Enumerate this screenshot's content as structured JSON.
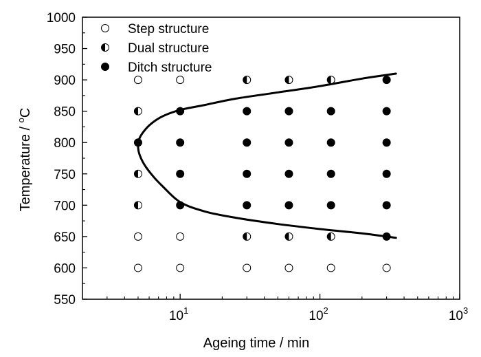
{
  "chart_data": {
    "type": "scatter",
    "x_scale": "log",
    "xlabel": "Ageing time / min",
    "ylabel_text": "Temperature / ",
    "ylabel_unit_sup": "o",
    "ylabel_unit": "C",
    "xlim": [
      2,
      1000
    ],
    "ylim": [
      550,
      1000
    ],
    "x_ticks": [
      {
        "value": 10,
        "base": "10",
        "exp": "1"
      },
      {
        "value": 100,
        "base": "10",
        "exp": "2"
      },
      {
        "value": 1000,
        "base": "10",
        "exp": "3"
      }
    ],
    "y_ticks": [
      550,
      600,
      650,
      700,
      750,
      800,
      850,
      900,
      950,
      1000
    ],
    "y_tick_labels": [
      "550",
      "600",
      "650",
      "700",
      "750",
      "800",
      "850",
      "900",
      "950",
      "1000"
    ],
    "legend": [
      {
        "label": "Step structure",
        "marker": "step"
      },
      {
        "label": "Dual structure",
        "marker": "dual"
      },
      {
        "label": "Ditch structure",
        "marker": "ditch"
      }
    ],
    "legend_position": "top-left",
    "grid": false,
    "points": [
      {
        "x": 5,
        "y": 600,
        "type": "step"
      },
      {
        "x": 10,
        "y": 600,
        "type": "step"
      },
      {
        "x": 30,
        "y": 600,
        "type": "step"
      },
      {
        "x": 60,
        "y": 600,
        "type": "step"
      },
      {
        "x": 120,
        "y": 600,
        "type": "step"
      },
      {
        "x": 300,
        "y": 600,
        "type": "step"
      },
      {
        "x": 5,
        "y": 650,
        "type": "step"
      },
      {
        "x": 10,
        "y": 650,
        "type": "step"
      },
      {
        "x": 30,
        "y": 650,
        "type": "dual"
      },
      {
        "x": 60,
        "y": 650,
        "type": "dual"
      },
      {
        "x": 120,
        "y": 650,
        "type": "dual"
      },
      {
        "x": 300,
        "y": 650,
        "type": "ditch"
      },
      {
        "x": 5,
        "y": 700,
        "type": "dual"
      },
      {
        "x": 10,
        "y": 700,
        "type": "ditch"
      },
      {
        "x": 30,
        "y": 700,
        "type": "ditch"
      },
      {
        "x": 60,
        "y": 700,
        "type": "ditch"
      },
      {
        "x": 120,
        "y": 700,
        "type": "ditch"
      },
      {
        "x": 300,
        "y": 700,
        "type": "ditch"
      },
      {
        "x": 5,
        "y": 750,
        "type": "dual"
      },
      {
        "x": 10,
        "y": 750,
        "type": "ditch"
      },
      {
        "x": 30,
        "y": 750,
        "type": "ditch"
      },
      {
        "x": 60,
        "y": 750,
        "type": "ditch"
      },
      {
        "x": 120,
        "y": 750,
        "type": "ditch"
      },
      {
        "x": 300,
        "y": 750,
        "type": "ditch"
      },
      {
        "x": 5,
        "y": 800,
        "type": "ditch"
      },
      {
        "x": 10,
        "y": 800,
        "type": "ditch"
      },
      {
        "x": 30,
        "y": 800,
        "type": "ditch"
      },
      {
        "x": 60,
        "y": 800,
        "type": "ditch"
      },
      {
        "x": 120,
        "y": 800,
        "type": "ditch"
      },
      {
        "x": 300,
        "y": 800,
        "type": "ditch"
      },
      {
        "x": 5,
        "y": 850,
        "type": "dual"
      },
      {
        "x": 10,
        "y": 850,
        "type": "ditch"
      },
      {
        "x": 30,
        "y": 850,
        "type": "ditch"
      },
      {
        "x": 60,
        "y": 850,
        "type": "ditch"
      },
      {
        "x": 120,
        "y": 850,
        "type": "ditch"
      },
      {
        "x": 300,
        "y": 850,
        "type": "ditch"
      },
      {
        "x": 5,
        "y": 900,
        "type": "step"
      },
      {
        "x": 10,
        "y": 900,
        "type": "step"
      },
      {
        "x": 30,
        "y": 900,
        "type": "dual"
      },
      {
        "x": 60,
        "y": 900,
        "type": "dual"
      },
      {
        "x": 120,
        "y": 900,
        "type": "dual"
      },
      {
        "x": 300,
        "y": 900,
        "type": "ditch"
      }
    ],
    "boundary_curve": [
      {
        "x": 350,
        "y": 910
      },
      {
        "x": 200,
        "y": 902
      },
      {
        "x": 100,
        "y": 890
      },
      {
        "x": 50,
        "y": 880
      },
      {
        "x": 25,
        "y": 870
      },
      {
        "x": 15,
        "y": 860
      },
      {
        "x": 10,
        "y": 852
      },
      {
        "x": 7.5,
        "y": 842
      },
      {
        "x": 6.2,
        "y": 830
      },
      {
        "x": 5.5,
        "y": 818
      },
      {
        "x": 5.1,
        "y": 806
      },
      {
        "x": 5.0,
        "y": 795
      },
      {
        "x": 5.1,
        "y": 782
      },
      {
        "x": 5.5,
        "y": 766
      },
      {
        "x": 6.3,
        "y": 748
      },
      {
        "x": 7.5,
        "y": 730
      },
      {
        "x": 10,
        "y": 705
      },
      {
        "x": 15,
        "y": 690
      },
      {
        "x": 25,
        "y": 680
      },
      {
        "x": 50,
        "y": 670
      },
      {
        "x": 100,
        "y": 662
      },
      {
        "x": 200,
        "y": 655
      },
      {
        "x": 350,
        "y": 648
      }
    ]
  }
}
